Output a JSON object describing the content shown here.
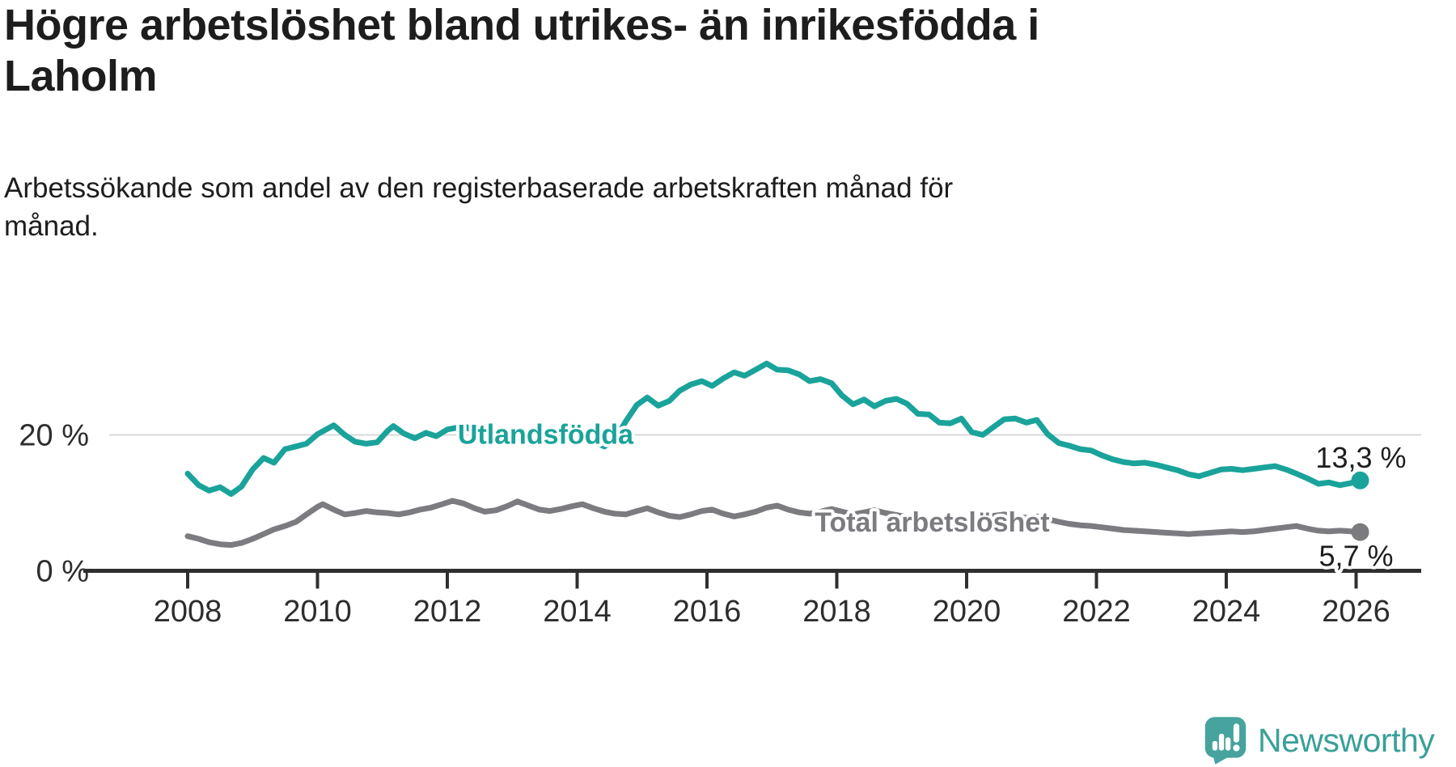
{
  "header": {
    "title": "Högre arbetslöshet bland utrikes- än inrikesfödda i Laholm",
    "subtitle": "Arbetssökande som andel av den registerbaserade arbetskraften månad för månad."
  },
  "branding": {
    "logo_text": "Newsworthy",
    "logo_color": "#3aa099",
    "logo_icon_color": "#46a39d"
  },
  "chart_data": {
    "type": "line",
    "title": "Högre arbetslöshet bland utrikes- än inrikesfödda i Laholm",
    "subtitle": "Arbetssökande som andel av den registerbaserade arbetskraften månad för månad.",
    "unit": "%",
    "xlabel": "",
    "ylabel": "",
    "grid": "horizontal-20-only",
    "legend_position": "inline-labels",
    "xlim": [
      2007.85,
      2026.6
    ],
    "ylim": [
      0,
      33.5
    ],
    "x_ticks": [
      2008,
      2010,
      2012,
      2014,
      2016,
      2018,
      2020,
      2022,
      2024,
      2026
    ],
    "y_ticks": [
      {
        "value": 0,
        "label": "0 %",
        "gridline": false
      },
      {
        "value": 20,
        "label": "20 %",
        "gridline": true
      }
    ],
    "series": [
      {
        "name": "Utlandsfödda",
        "color": "#1aa39a",
        "end_label": "13,3 %",
        "end_value": 13.3,
        "label_anchor": [
          2012.16,
          20.1
        ],
        "points": [
          [
            2008.0,
            14.3
          ],
          [
            2008.17,
            12.6
          ],
          [
            2008.33,
            11.8
          ],
          [
            2008.5,
            12.3
          ],
          [
            2008.67,
            11.3
          ],
          [
            2008.83,
            12.4
          ],
          [
            2009.0,
            14.9
          ],
          [
            2009.17,
            16.6
          ],
          [
            2009.33,
            15.9
          ],
          [
            2009.5,
            17.9
          ],
          [
            2009.67,
            18.3
          ],
          [
            2009.83,
            18.7
          ],
          [
            2010.0,
            20.1
          ],
          [
            2010.25,
            21.4
          ],
          [
            2010.42,
            20.0
          ],
          [
            2010.58,
            19.0
          ],
          [
            2010.75,
            18.7
          ],
          [
            2010.92,
            18.9
          ],
          [
            2011.08,
            20.6
          ],
          [
            2011.17,
            21.3
          ],
          [
            2011.33,
            20.2
          ],
          [
            2011.5,
            19.5
          ],
          [
            2011.67,
            20.3
          ],
          [
            2011.83,
            19.8
          ],
          [
            2012.0,
            20.8
          ],
          [
            2012.17,
            21.1
          ],
          [
            2012.25,
            21.4
          ],
          [
            2012.42,
            20.4
          ],
          [
            2012.58,
            19.4
          ],
          [
            2012.75,
            19.9
          ],
          [
            2012.92,
            19.7
          ],
          [
            2013.08,
            20.4
          ],
          [
            2013.25,
            19.9
          ],
          [
            2013.42,
            19.3
          ],
          [
            2013.58,
            19.5
          ],
          [
            2013.75,
            19.0
          ],
          [
            2013.92,
            19.1
          ],
          [
            2014.08,
            19.6
          ],
          [
            2014.25,
            19.0
          ],
          [
            2014.42,
            18.3
          ],
          [
            2014.58,
            19.3
          ],
          [
            2014.75,
            22.0
          ],
          [
            2014.92,
            24.4
          ],
          [
            2015.08,
            25.5
          ],
          [
            2015.25,
            24.3
          ],
          [
            2015.42,
            25.0
          ],
          [
            2015.58,
            26.5
          ],
          [
            2015.75,
            27.4
          ],
          [
            2015.92,
            27.9
          ],
          [
            2016.08,
            27.2
          ],
          [
            2016.25,
            28.3
          ],
          [
            2016.42,
            29.2
          ],
          [
            2016.58,
            28.7
          ],
          [
            2016.75,
            29.6
          ],
          [
            2016.92,
            30.5
          ],
          [
            2017.08,
            29.6
          ],
          [
            2017.25,
            29.5
          ],
          [
            2017.42,
            28.9
          ],
          [
            2017.58,
            27.9
          ],
          [
            2017.75,
            28.2
          ],
          [
            2017.92,
            27.6
          ],
          [
            2018.08,
            25.8
          ],
          [
            2018.25,
            24.5
          ],
          [
            2018.42,
            25.2
          ],
          [
            2018.58,
            24.2
          ],
          [
            2018.75,
            25.0
          ],
          [
            2018.92,
            25.3
          ],
          [
            2019.08,
            24.6
          ],
          [
            2019.25,
            23.1
          ],
          [
            2019.42,
            23.0
          ],
          [
            2019.58,
            21.8
          ],
          [
            2019.75,
            21.7
          ],
          [
            2019.92,
            22.4
          ],
          [
            2020.08,
            20.4
          ],
          [
            2020.25,
            20.0
          ],
          [
            2020.42,
            21.2
          ],
          [
            2020.58,
            22.3
          ],
          [
            2020.75,
            22.4
          ],
          [
            2020.92,
            21.8
          ],
          [
            2021.08,
            22.2
          ],
          [
            2021.25,
            20.1
          ],
          [
            2021.42,
            18.8
          ],
          [
            2021.58,
            18.4
          ],
          [
            2021.75,
            17.9
          ],
          [
            2021.92,
            17.7
          ],
          [
            2022.08,
            17.0
          ],
          [
            2022.25,
            16.4
          ],
          [
            2022.42,
            16.0
          ],
          [
            2022.58,
            15.8
          ],
          [
            2022.75,
            15.9
          ],
          [
            2022.92,
            15.6
          ],
          [
            2023.08,
            15.2
          ],
          [
            2023.25,
            14.8
          ],
          [
            2023.42,
            14.2
          ],
          [
            2023.58,
            13.9
          ],
          [
            2023.75,
            14.4
          ],
          [
            2023.92,
            14.9
          ],
          [
            2024.08,
            15.0
          ],
          [
            2024.25,
            14.8
          ],
          [
            2024.42,
            15.0
          ],
          [
            2024.58,
            15.2
          ],
          [
            2024.75,
            15.4
          ],
          [
            2024.92,
            14.9
          ],
          [
            2025.08,
            14.3
          ],
          [
            2025.25,
            13.6
          ],
          [
            2025.42,
            12.8
          ],
          [
            2025.58,
            13.0
          ],
          [
            2025.75,
            12.6
          ],
          [
            2025.92,
            12.9
          ],
          [
            2026.0,
            13.3
          ]
        ]
      },
      {
        "name": "Total arbetslöshet",
        "color": "#7b7b80",
        "end_label": "5,7 %",
        "end_value": 5.7,
        "label_anchor": [
          2017.66,
          7.2
        ],
        "points": [
          [
            2008.0,
            5.1
          ],
          [
            2008.17,
            4.7
          ],
          [
            2008.33,
            4.2
          ],
          [
            2008.5,
            3.9
          ],
          [
            2008.67,
            3.8
          ],
          [
            2008.83,
            4.1
          ],
          [
            2009.0,
            4.7
          ],
          [
            2009.17,
            5.4
          ],
          [
            2009.33,
            6.1
          ],
          [
            2009.5,
            6.6
          ],
          [
            2009.67,
            7.2
          ],
          [
            2009.83,
            8.3
          ],
          [
            2010.0,
            9.4
          ],
          [
            2010.08,
            9.8
          ],
          [
            2010.25,
            9.0
          ],
          [
            2010.42,
            8.3
          ],
          [
            2010.58,
            8.5
          ],
          [
            2010.75,
            8.8
          ],
          [
            2010.92,
            8.6
          ],
          [
            2011.08,
            8.5
          ],
          [
            2011.25,
            8.3
          ],
          [
            2011.42,
            8.6
          ],
          [
            2011.58,
            9.0
          ],
          [
            2011.75,
            9.3
          ],
          [
            2011.92,
            9.8
          ],
          [
            2012.08,
            10.3
          ],
          [
            2012.25,
            9.9
          ],
          [
            2012.42,
            9.2
          ],
          [
            2012.58,
            8.7
          ],
          [
            2012.75,
            8.9
          ],
          [
            2012.92,
            9.5
          ],
          [
            2013.08,
            10.2
          ],
          [
            2013.25,
            9.6
          ],
          [
            2013.42,
            9.0
          ],
          [
            2013.58,
            8.8
          ],
          [
            2013.75,
            9.1
          ],
          [
            2013.92,
            9.5
          ],
          [
            2014.08,
            9.8
          ],
          [
            2014.25,
            9.2
          ],
          [
            2014.42,
            8.7
          ],
          [
            2014.58,
            8.4
          ],
          [
            2014.75,
            8.3
          ],
          [
            2014.92,
            8.8
          ],
          [
            2015.08,
            9.2
          ],
          [
            2015.25,
            8.6
          ],
          [
            2015.42,
            8.1
          ],
          [
            2015.58,
            7.9
          ],
          [
            2015.75,
            8.3
          ],
          [
            2015.92,
            8.8
          ],
          [
            2016.08,
            9.0
          ],
          [
            2016.25,
            8.4
          ],
          [
            2016.42,
            8.0
          ],
          [
            2016.58,
            8.3
          ],
          [
            2016.75,
            8.7
          ],
          [
            2016.92,
            9.3
          ],
          [
            2017.08,
            9.6
          ],
          [
            2017.25,
            9.0
          ],
          [
            2017.42,
            8.6
          ],
          [
            2017.58,
            8.4
          ],
          [
            2017.75,
            8.7
          ],
          [
            2017.92,
            9.1
          ],
          [
            2018.08,
            8.7
          ],
          [
            2018.25,
            8.3
          ],
          [
            2018.42,
            8.6
          ],
          [
            2018.58,
            8.9
          ],
          [
            2018.75,
            8.5
          ],
          [
            2018.92,
            8.2
          ],
          [
            2019.08,
            7.9
          ],
          [
            2019.25,
            7.6
          ],
          [
            2019.42,
            7.4
          ],
          [
            2019.58,
            7.7
          ],
          [
            2019.75,
            7.9
          ],
          [
            2019.92,
            7.5
          ],
          [
            2020.08,
            7.3
          ],
          [
            2020.25,
            7.7
          ],
          [
            2020.42,
            8.1
          ],
          [
            2020.58,
            8.3
          ],
          [
            2020.75,
            8.0
          ],
          [
            2020.92,
            7.8
          ],
          [
            2021.08,
            8.0
          ],
          [
            2021.25,
            7.6
          ],
          [
            2021.42,
            7.2
          ],
          [
            2021.58,
            6.9
          ],
          [
            2021.75,
            6.7
          ],
          [
            2021.92,
            6.6
          ],
          [
            2022.08,
            6.4
          ],
          [
            2022.25,
            6.2
          ],
          [
            2022.42,
            6.0
          ],
          [
            2022.58,
            5.9
          ],
          [
            2022.75,
            5.8
          ],
          [
            2022.92,
            5.7
          ],
          [
            2023.08,
            5.6
          ],
          [
            2023.25,
            5.5
          ],
          [
            2023.42,
            5.4
          ],
          [
            2023.58,
            5.5
          ],
          [
            2023.75,
            5.6
          ],
          [
            2023.92,
            5.7
          ],
          [
            2024.08,
            5.8
          ],
          [
            2024.25,
            5.7
          ],
          [
            2024.42,
            5.8
          ],
          [
            2024.58,
            6.0
          ],
          [
            2024.75,
            6.2
          ],
          [
            2024.92,
            6.4
          ],
          [
            2025.08,
            6.6
          ],
          [
            2025.25,
            6.2
          ],
          [
            2025.42,
            5.9
          ],
          [
            2025.58,
            5.8
          ],
          [
            2025.75,
            5.9
          ],
          [
            2025.92,
            5.8
          ],
          [
            2026.0,
            5.7
          ]
        ]
      }
    ]
  }
}
